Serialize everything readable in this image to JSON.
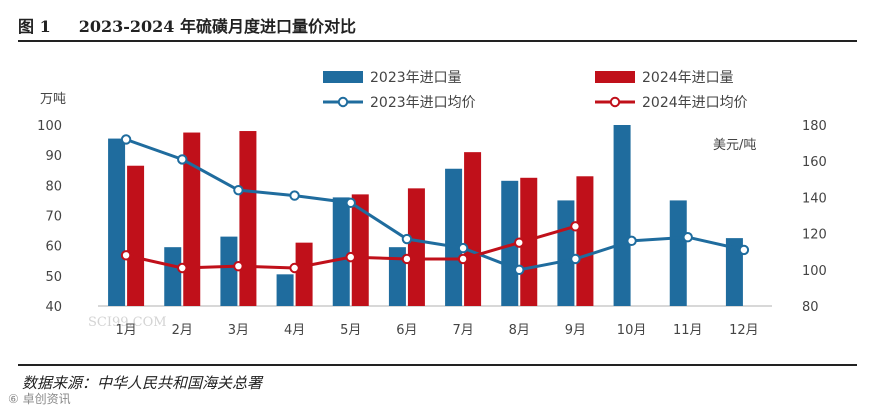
{
  "header": {
    "figure_label": "图 1",
    "title": "2023-2024 年硫磺月度进口量价对比"
  },
  "footer": {
    "source": "数据来源：中华人民共和国海关总署",
    "watermark": "⑥ 卓创资讯"
  },
  "chart_watermark": "SCI99.COM",
  "colors": {
    "blue": "#1f6c9e",
    "red": "#c0101a",
    "axis": "#999999",
    "text": "#444444"
  },
  "chart_data": {
    "type": "bar",
    "categories": [
      "1月",
      "2月",
      "3月",
      "4月",
      "5月",
      "6月",
      "7月",
      "8月",
      "9月",
      "10月",
      "11月",
      "12月"
    ],
    "left_axis": {
      "label": "万吨",
      "min": 40,
      "max": 100,
      "ticks": [
        40,
        50,
        60,
        70,
        80,
        90,
        100
      ]
    },
    "right_axis": {
      "label": "美元/吨",
      "min": 80,
      "max": 180,
      "ticks": [
        80,
        100,
        120,
        140,
        160,
        180
      ]
    },
    "series": [
      {
        "name": "2023年进口量",
        "kind": "bar",
        "axis": "left",
        "color": "#1f6c9e",
        "values": [
          95.5,
          59.5,
          63,
          50.5,
          76,
          59.5,
          85.5,
          81.5,
          75,
          100,
          75,
          62.5
        ]
      },
      {
        "name": "2024年进口量",
        "kind": "bar",
        "axis": "left",
        "color": "#c0101a",
        "values": [
          86.5,
          97.5,
          98,
          61,
          77,
          79,
          91,
          82.5,
          83,
          null,
          null,
          null
        ]
      },
      {
        "name": "2023年进口均价",
        "kind": "line",
        "axis": "right",
        "color": "#1f6c9e",
        "values": [
          172,
          161,
          144,
          141,
          137,
          117,
          112,
          100,
          106,
          116,
          118,
          111
        ]
      },
      {
        "name": "2024年进口均价",
        "kind": "line",
        "axis": "right",
        "color": "#c0101a",
        "values": [
          108,
          101,
          102,
          101,
          107,
          106,
          106,
          115,
          124,
          null,
          null,
          null
        ]
      }
    ]
  }
}
